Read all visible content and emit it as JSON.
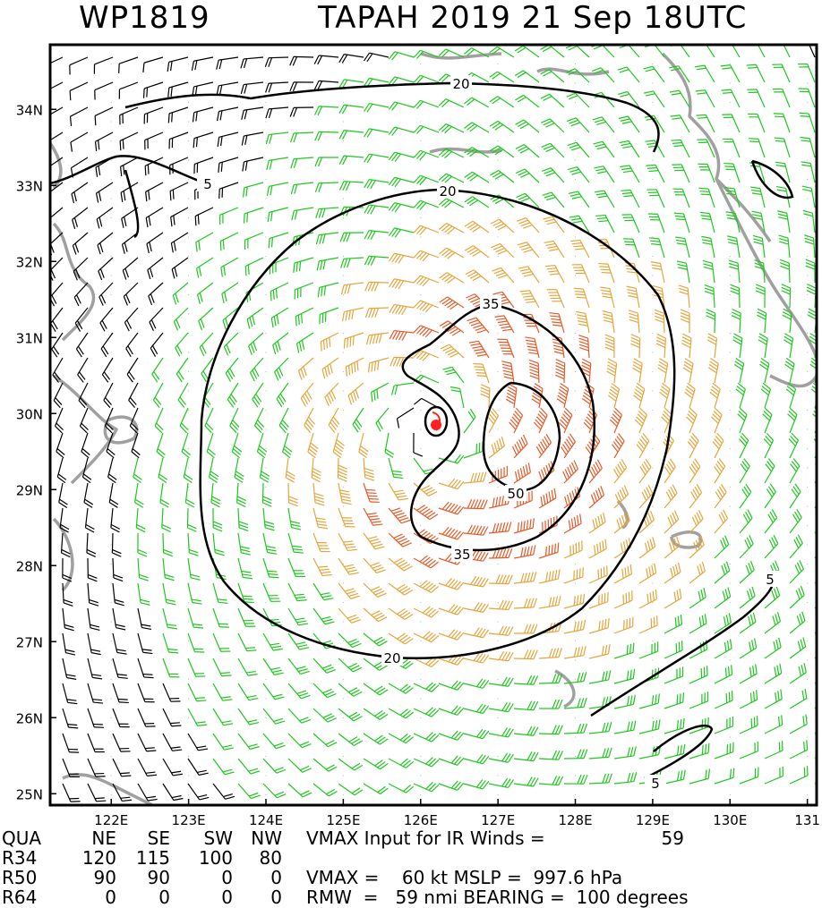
{
  "header": {
    "storm_id": "WP1819",
    "storm_title": "TAPAH 2019 21 Sep 18UTC"
  },
  "chart_data": {
    "type": "wind-barb-map",
    "x_ticks": [
      "122E",
      "123E",
      "124E",
      "125E",
      "126E",
      "127E",
      "128E",
      "129E",
      "130E",
      "131"
    ],
    "y_ticks": [
      "34N",
      "33N",
      "32N",
      "31N",
      "30N",
      "29N",
      "28N",
      "27N",
      "26N",
      "25N"
    ],
    "contour_labels": [
      "20",
      "5",
      "20",
      "35",
      "50",
      "35",
      "20",
      "5",
      "5"
    ],
    "storm_center": {
      "lon": 126.2,
      "lat": 29.85
    },
    "wind_colors": {
      "calm": "#000000",
      "gale": "#1ec81e",
      "storm": "#e6a53c",
      "hurricane": "#e65a28"
    },
    "contour_color": "#000000",
    "land_color": "#a0a0a0",
    "center_color": "#ff2020"
  },
  "table": {
    "rows": [
      [
        "QUA",
        "NE",
        "SE",
        "SW",
        "NW"
      ],
      [
        "R34",
        "120",
        "115",
        "100",
        "80"
      ],
      [
        "R50",
        "90",
        "90",
        "0",
        "0"
      ],
      [
        "R64",
        "0",
        "0",
        "0",
        "0"
      ]
    ],
    "vmax_input_label": "VMAX Input for IR Winds =",
    "vmax_input_value": "59",
    "vmax_line": "VMAX =    60 kt MSLP =  997.6 hPa",
    "rmw_line": "RMW  =   59 nmi BEARING =  100 degrees"
  }
}
